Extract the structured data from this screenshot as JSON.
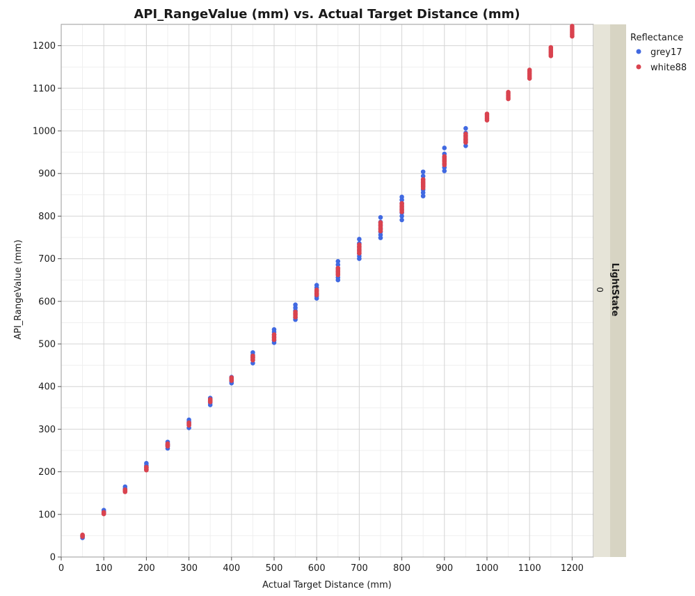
{
  "chart_data": {
    "type": "scatter",
    "title": "API_RangeValue (mm) vs. Actual Target Distance (mm)",
    "xlabel": "Actual Target Distance (mm)",
    "ylabel": "API_RangeValue (mm)",
    "xlim": [
      0,
      1250
    ],
    "ylim": [
      0,
      1250
    ],
    "xticks": [
      0,
      100,
      200,
      300,
      400,
      500,
      600,
      700,
      800,
      900,
      1000,
      1100,
      1200
    ],
    "yticks": [
      0,
      100,
      200,
      300,
      400,
      500,
      600,
      700,
      800,
      900,
      1000,
      1100,
      1200
    ],
    "grid": true,
    "legend": {
      "title": "Reflectance",
      "placement": "right"
    },
    "facet": {
      "label": "LightState",
      "value": "0"
    },
    "series": [
      {
        "name": "grey17",
        "color": "#4169e1",
        "points": [
          [
            50,
            45
          ],
          [
            50,
            50
          ],
          [
            50,
            48
          ],
          [
            100,
            102
          ],
          [
            100,
            106
          ],
          [
            100,
            110
          ],
          [
            100,
            104
          ],
          [
            150,
            155
          ],
          [
            150,
            160
          ],
          [
            150,
            165
          ],
          [
            150,
            158
          ],
          [
            200,
            205
          ],
          [
            200,
            210
          ],
          [
            200,
            215
          ],
          [
            200,
            220
          ],
          [
            200,
            212
          ],
          [
            250,
            255
          ],
          [
            250,
            260
          ],
          [
            250,
            265
          ],
          [
            250,
            270
          ],
          [
            250,
            262
          ],
          [
            300,
            303
          ],
          [
            300,
            310
          ],
          [
            300,
            315
          ],
          [
            300,
            322
          ],
          [
            300,
            318
          ],
          [
            350,
            357
          ],
          [
            350,
            362
          ],
          [
            350,
            368
          ],
          [
            350,
            373
          ],
          [
            350,
            365
          ],
          [
            400,
            408
          ],
          [
            400,
            412
          ],
          [
            400,
            418
          ],
          [
            400,
            422
          ],
          [
            400,
            415
          ],
          [
            450,
            455
          ],
          [
            450,
            462
          ],
          [
            450,
            468
          ],
          [
            450,
            474
          ],
          [
            450,
            480
          ],
          [
            450,
            470
          ],
          [
            500,
            503
          ],
          [
            500,
            508
          ],
          [
            500,
            515
          ],
          [
            500,
            522
          ],
          [
            500,
            528
          ],
          [
            500,
            534
          ],
          [
            550,
            557
          ],
          [
            550,
            562
          ],
          [
            550,
            570
          ],
          [
            550,
            578
          ],
          [
            550,
            585
          ],
          [
            550,
            592
          ],
          [
            600,
            607
          ],
          [
            600,
            612
          ],
          [
            600,
            618
          ],
          [
            600,
            625
          ],
          [
            600,
            632
          ],
          [
            600,
            638
          ],
          [
            650,
            650
          ],
          [
            650,
            656
          ],
          [
            650,
            662
          ],
          [
            650,
            670
          ],
          [
            650,
            678
          ],
          [
            650,
            686
          ],
          [
            650,
            694
          ],
          [
            700,
            700
          ],
          [
            700,
            706
          ],
          [
            700,
            712
          ],
          [
            700,
            720
          ],
          [
            700,
            728
          ],
          [
            700,
            736
          ],
          [
            700,
            746
          ],
          [
            750,
            749
          ],
          [
            750,
            756
          ],
          [
            750,
            763
          ],
          [
            750,
            770
          ],
          [
            750,
            778
          ],
          [
            750,
            786
          ],
          [
            750,
            797
          ],
          [
            800,
            791
          ],
          [
            800,
            800
          ],
          [
            800,
            808
          ],
          [
            800,
            815
          ],
          [
            800,
            822
          ],
          [
            800,
            830
          ],
          [
            800,
            838
          ],
          [
            800,
            845
          ],
          [
            850,
            847
          ],
          [
            850,
            855
          ],
          [
            850,
            862
          ],
          [
            850,
            870
          ],
          [
            850,
            878
          ],
          [
            850,
            886
          ],
          [
            850,
            894
          ],
          [
            850,
            904
          ],
          [
            900,
            906
          ],
          [
            900,
            914
          ],
          [
            900,
            922
          ],
          [
            900,
            930
          ],
          [
            900,
            938
          ],
          [
            900,
            946
          ],
          [
            900,
            960
          ],
          [
            950,
            965
          ],
          [
            950,
            973
          ],
          [
            950,
            980
          ],
          [
            950,
            988
          ],
          [
            950,
            995
          ],
          [
            950,
            1006
          ]
        ]
      },
      {
        "name": "white88",
        "color": "#d9434f",
        "points": [
          [
            50,
            48
          ],
          [
            50,
            50
          ],
          [
            50,
            52
          ],
          [
            100,
            101
          ],
          [
            100,
            103
          ],
          [
            100,
            105
          ],
          [
            150,
            153
          ],
          [
            150,
            155
          ],
          [
            150,
            158
          ],
          [
            200,
            204
          ],
          [
            200,
            206
          ],
          [
            200,
            209
          ],
          [
            200,
            211
          ],
          [
            250,
            260
          ],
          [
            250,
            263
          ],
          [
            250,
            266
          ],
          [
            300,
            309
          ],
          [
            300,
            312
          ],
          [
            300,
            315
          ],
          [
            350,
            364
          ],
          [
            350,
            367
          ],
          [
            350,
            370
          ],
          [
            400,
            414
          ],
          [
            400,
            418
          ],
          [
            400,
            421
          ],
          [
            450,
            462
          ],
          [
            450,
            465
          ],
          [
            450,
            468
          ],
          [
            450,
            472
          ],
          [
            500,
            510
          ],
          [
            500,
            514
          ],
          [
            500,
            518
          ],
          [
            500,
            522
          ],
          [
            550,
            563
          ],
          [
            550,
            567
          ],
          [
            550,
            571
          ],
          [
            550,
            575
          ],
          [
            600,
            615
          ],
          [
            600,
            619
          ],
          [
            600,
            623
          ],
          [
            600,
            627
          ],
          [
            650,
            662
          ],
          [
            650,
            666
          ],
          [
            650,
            670
          ],
          [
            650,
            674
          ],
          [
            650,
            678
          ],
          [
            700,
            713
          ],
          [
            700,
            717
          ],
          [
            700,
            721
          ],
          [
            700,
            725
          ],
          [
            700,
            729
          ],
          [
            700,
            733
          ],
          [
            750,
            765
          ],
          [
            750,
            769
          ],
          [
            750,
            773
          ],
          [
            750,
            777
          ],
          [
            750,
            781
          ],
          [
            750,
            785
          ],
          [
            800,
            810
          ],
          [
            800,
            814
          ],
          [
            800,
            818
          ],
          [
            800,
            822
          ],
          [
            800,
            826
          ],
          [
            800,
            830
          ],
          [
            850,
            866
          ],
          [
            850,
            870
          ],
          [
            850,
            874
          ],
          [
            850,
            878
          ],
          [
            850,
            882
          ],
          [
            850,
            886
          ],
          [
            900,
            920
          ],
          [
            900,
            924
          ],
          [
            900,
            928
          ],
          [
            900,
            932
          ],
          [
            900,
            936
          ],
          [
            900,
            940
          ],
          [
            950,
            973
          ],
          [
            950,
            977
          ],
          [
            950,
            981
          ],
          [
            950,
            985
          ],
          [
            950,
            989
          ],
          [
            950,
            993
          ],
          [
            1000,
            1025
          ],
          [
            1000,
            1029
          ],
          [
            1000,
            1033
          ],
          [
            1000,
            1037
          ],
          [
            1000,
            1040
          ],
          [
            1050,
            1075
          ],
          [
            1050,
            1079
          ],
          [
            1050,
            1083
          ],
          [
            1050,
            1087
          ],
          [
            1050,
            1091
          ],
          [
            1100,
            1123
          ],
          [
            1100,
            1127
          ],
          [
            1100,
            1131
          ],
          [
            1100,
            1135
          ],
          [
            1100,
            1139
          ],
          [
            1100,
            1143
          ],
          [
            1150,
            1176
          ],
          [
            1150,
            1180
          ],
          [
            1150,
            1184
          ],
          [
            1150,
            1188
          ],
          [
            1150,
            1192
          ],
          [
            1150,
            1196
          ],
          [
            1200,
            1222
          ],
          [
            1200,
            1226
          ],
          [
            1200,
            1230
          ],
          [
            1200,
            1234
          ],
          [
            1200,
            1238
          ],
          [
            1200,
            1242
          ],
          [
            1200,
            1246
          ]
        ]
      }
    ]
  }
}
